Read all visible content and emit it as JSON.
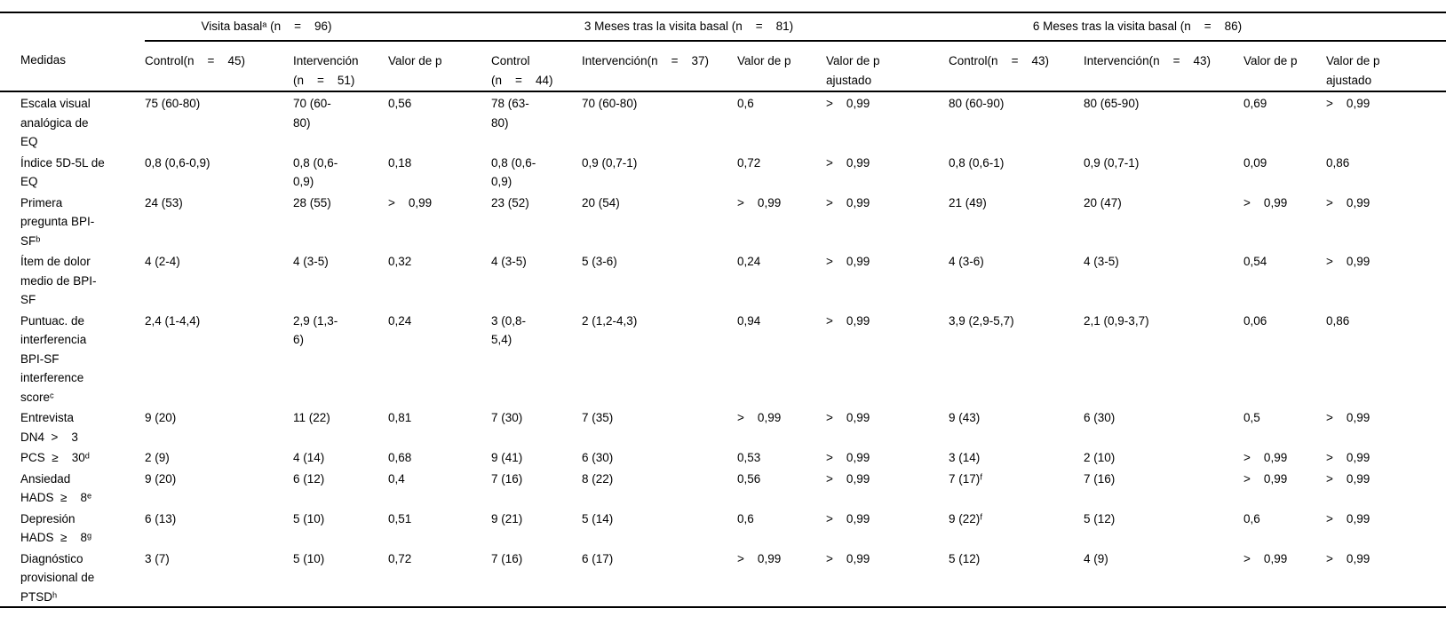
{
  "page": {
    "background": "#ffffff",
    "text_color": "#000000",
    "rule_color": "#000000"
  },
  "table": {
    "row_header_label": "Medidas",
    "groups": [
      {
        "label": "Visita basalᵃ (n  =  96)"
      },
      {
        "label": "3 Meses tras la visita basal (n  =  81)"
      },
      {
        "label": "6 Meses tras la visita basal (n  =  86)"
      }
    ],
    "columns": [
      "Control(n  =  45)",
      "Intervención (n  =  51)",
      "Valor de p",
      "Control (n  =  44)",
      "Intervención(n  =  37)",
      "Valor de p",
      "Valor de p ajustado",
      "Control(n  =  43)",
      "Intervención(n  =  43)",
      "Valor de p",
      "Valor de p ajustado"
    ],
    "rows": [
      {
        "label": "Escala visual analógica de EQ",
        "values": [
          "75 (60-80)",
          "70 (60-80)",
          "0,56",
          "78 (63-80)",
          "70 (60-80)",
          "0,6",
          ">  0,99",
          "80 (60-90)",
          "80 (65-90)",
          "0,69",
          ">  0,99"
        ]
      },
      {
        "label": "Índice 5D-5L de EQ",
        "values": [
          "0,8 (0,6-0,9)",
          "0,8 (0,6-0,9)",
          "0,18",
          "0,8 (0,6-0,9)",
          "0,9 (0,7-1)",
          "0,72",
          ">  0,99",
          "0,8 (0,6-1)",
          "0,9 (0,7-1)",
          "0,09",
          "0,86"
        ]
      },
      {
        "label": "Primera pregunta BPI-SFᵇ",
        "values": [
          "24 (53)",
          "28 (55)",
          ">  0,99",
          "23 (52)",
          "20 (54)",
          ">  0,99",
          ">  0,99",
          "21 (49)",
          "20 (47)",
          ">  0,99",
          ">  0,99"
        ]
      },
      {
        "label": "Ítem de dolor medio de BPI-SF",
        "values": [
          "4 (2-4)",
          "4 (3-5)",
          "0,32",
          "4 (3-5)",
          "5 (3-6)",
          "0,24",
          ">  0,99",
          "4 (3-6)",
          "4 (3-5)",
          "0,54",
          ">  0,99"
        ]
      },
      {
        "label": "Puntuac. de interferencia BPI-SF interference scoreᶜ",
        "values": [
          "2,4 (1-4,4)",
          "2,9 (1,3-6)",
          "0,24",
          "3 (0,8-5,4)",
          "2 (1,2-4,3)",
          "0,94",
          ">  0,99",
          "3,9 (2,9-5,7)",
          "2,1 (0,9-3,7)",
          "0,06",
          "0,86"
        ]
      },
      {
        "label": "Entrevista DN4 >  3",
        "values": [
          "9 (20)",
          "11 (22)",
          "0,81",
          "7 (30)",
          "7 (35)",
          ">  0,99",
          ">  0,99",
          "9 (43)",
          "6 (30)",
          "0,5",
          ">  0,99"
        ]
      },
      {
        "label": "PCS ≥  30ᵈ",
        "values": [
          "2 (9)",
          "4 (14)",
          "0,68",
          "9 (41)",
          "6 (30)",
          "0,53",
          ">  0,99",
          "3 (14)",
          "2 (10)",
          ">  0,99",
          ">  0,99"
        ]
      },
      {
        "label": "Ansiedad HADS ≥  8ᵉ",
        "values": [
          "9 (20)",
          "6 (12)",
          "0,4",
          "7 (16)",
          "8 (22)",
          "0,56",
          ">  0,99",
          "7 (17)ᶠ",
          "7 (16)",
          ">  0,99",
          ">  0,99"
        ]
      },
      {
        "label": "Depresión HADS ≥  8ᵍ",
        "values": [
          "6 (13)",
          "5 (10)",
          "0,51",
          "9 (21)",
          "5 (14)",
          "0,6",
          ">  0,99",
          "9 (22)ᶠ",
          "5 (12)",
          "0,6",
          ">  0,99"
        ]
      },
      {
        "label": "Diagnóstico provisional de PTSDʰ",
        "values": [
          "3 (7)",
          "5 (10)",
          "0,72",
          "7 (16)",
          "6 (17)",
          ">  0,99",
          ">  0,99",
          "5 (12)",
          "4 (9)",
          ">  0,99",
          ">  0,99"
        ]
      }
    ]
  }
}
